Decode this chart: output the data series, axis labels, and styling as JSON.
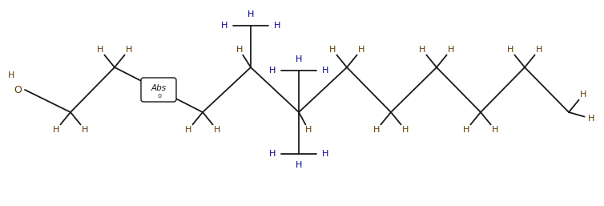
{
  "background": "#ffffff",
  "bond_color": "#1a1a1a",
  "H_color": "#5c3a00",
  "H_color_blue": "#00008B",
  "figsize": [
    7.54,
    2.57
  ],
  "dpi": 100,
  "xlim": [
    0,
    754
  ],
  "ylim": [
    0,
    257
  ]
}
